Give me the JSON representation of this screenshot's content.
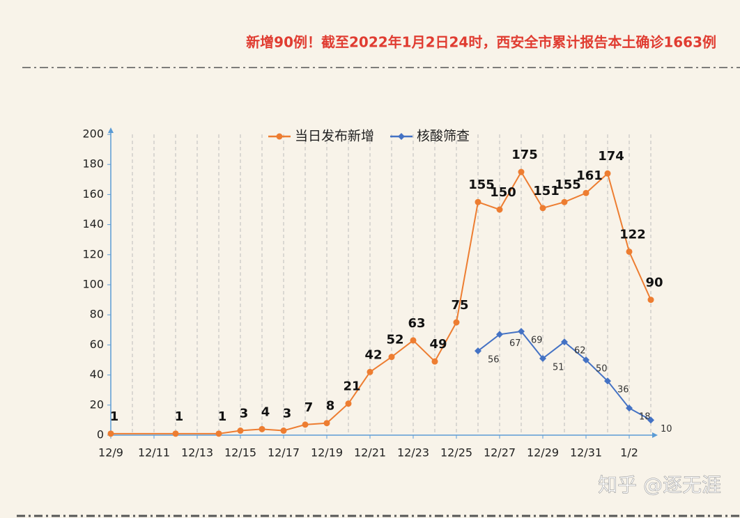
{
  "header": "新增90例！截至2022年1月2日24时，西安全市累计报告本土确诊1663例",
  "watermark": "知乎 @逐无涯",
  "chart_data": {
    "type": "line",
    "categories": [
      "12/9",
      null,
      "12/11",
      null,
      "12/13",
      null,
      "12/15",
      null,
      "12/17",
      null,
      "12/19",
      null,
      "12/21",
      null,
      "12/23",
      null,
      "12/25",
      null,
      "12/27",
      null,
      "12/29",
      null,
      "12/31",
      null,
      "1/2",
      null
    ],
    "series": [
      {
        "name": "当日发布新增",
        "color": "#ed7d31",
        "marker": "circle",
        "values": [
          1,
          null,
          null,
          1,
          null,
          1,
          3,
          4,
          3,
          7,
          8,
          21,
          42,
          52,
          63,
          49,
          75,
          155,
          150,
          175,
          151,
          155,
          161,
          174,
          122,
          90
        ]
      },
      {
        "name": "核酸筛查",
        "color": "#4472c4",
        "marker": "diamond",
        "values": [
          null,
          null,
          null,
          null,
          null,
          null,
          null,
          null,
          null,
          null,
          null,
          null,
          null,
          null,
          null,
          null,
          null,
          56,
          67,
          69,
          51,
          62,
          50,
          36,
          18,
          10
        ]
      }
    ],
    "connect_gaps": true,
    "ylim": [
      0,
      200
    ],
    "yticks": [
      0,
      20,
      40,
      60,
      80,
      100,
      120,
      140,
      160,
      180,
      200
    ],
    "grid": "x",
    "legend": "top"
  }
}
